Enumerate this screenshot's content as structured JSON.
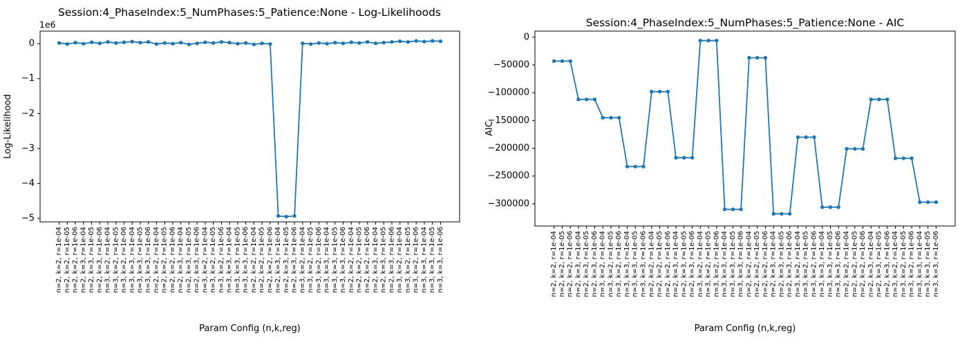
{
  "figure": {
    "background": "#ffffff",
    "accent_color": "#1f77b4"
  },
  "chart_data": [
    {
      "type": "line",
      "title": "Session:4_PhaseIndex:5_NumPhases:5_Patience:None - Log-Likelihoods",
      "ylabel": "Log-Likelihood",
      "xlabel": "Param Config (n,k,reg)",
      "offset_text": "1e6",
      "legend": "none",
      "grid": false,
      "line_color": "#1f77b4",
      "marker": "circle",
      "ylim": [
        -5100000,
        360000
      ],
      "yticks": [
        0,
        -1000000,
        -2000000,
        -3000000,
        -4000000,
        -5000000
      ],
      "ytick_labels": [
        "0",
        "−1",
        "−2",
        "−3",
        "−4",
        "−5"
      ],
      "categories": [
        "n=2, k=2, r=1e-04",
        "n=2, k=2, r=1e-05",
        "n=2, k=2, r=1e-06",
        "n=2, k=3, r=1e-04",
        "n=2, k=3, r=1e-05",
        "n=2, k=3, r=1e-06",
        "n=3, k=2, r=1e-04",
        "n=3, k=2, r=1e-05",
        "n=3, k=2, r=1e-06",
        "n=3, k=3, r=1e-04",
        "n=3, k=3, r=1e-05",
        "n=3, k=3, r=1e-06",
        "n=2, k=2, r=1e-04",
        "n=2, k=2, r=1e-05",
        "n=2, k=2, r=1e-06",
        "n=2, k=3, r=1e-04",
        "n=2, k=3, r=1e-05",
        "n=2, k=3, r=1e-06",
        "n=3, k=2, r=1e-04",
        "n=3, k=2, r=1e-05",
        "n=3, k=2, r=1e-06",
        "n=3, k=3, r=1e-04",
        "n=3, k=3, r=1e-05",
        "n=3, k=3, r=1e-06",
        "n=2, k=2, r=1e-04",
        "n=2, k=2, r=1e-05",
        "n=2, k=2, r=1e-06",
        "n=2, k=3, r=1e-04",
        "n=2, k=3, r=1e-05",
        "n=2, k=3, r=1e-06",
        "n=3, k=2, r=1e-04",
        "n=3, k=2, r=1e-05",
        "n=3, k=2, r=1e-06",
        "n=3, k=3, r=1e-04",
        "n=3, k=3, r=1e-05",
        "n=3, k=3, r=1e-06",
        "n=2, k=2, r=1e-04",
        "n=2, k=2, r=1e-05",
        "n=2, k=2, r=1e-06",
        "n=2, k=3, r=1e-04",
        "n=2, k=3, r=1e-05",
        "n=2, k=3, r=1e-06",
        "n=3, k=2, r=1e-04",
        "n=3, k=2, r=1e-05",
        "n=3, k=2, r=1e-06",
        "n=3, k=3, r=1e-04",
        "n=3, k=3, r=1e-05",
        "n=3, k=3, r=1e-06"
      ],
      "values": [
        20000,
        -10000,
        30000,
        0,
        40000,
        10000,
        50000,
        20000,
        40000,
        60000,
        30000,
        50000,
        -10000,
        20000,
        0,
        30000,
        -20000,
        10000,
        40000,
        20000,
        50000,
        30000,
        0,
        20000,
        -20000,
        10000,
        -10000,
        -4930000,
        -4950000,
        -4930000,
        10000,
        -10000,
        20000,
        0,
        30000,
        10000,
        40000,
        20000,
        50000,
        10000,
        30000,
        50000,
        70000,
        50000,
        80000,
        60000,
        80000,
        70000
      ]
    },
    {
      "type": "line",
      "title": "Session:4_PhaseIndex:5_NumPhases:5_Patience:None - AIC",
      "ylabel": "AIC",
      "xlabel": "Param Config (n,k,reg)",
      "offset_text": "",
      "legend": "none",
      "grid": false,
      "line_color": "#1f77b4",
      "marker": "circle",
      "ylim": [
        -340000,
        11000
      ],
      "yticks": [
        0,
        -50000,
        -100000,
        -150000,
        -200000,
        -250000,
        -300000
      ],
      "ytick_labels": [
        "0",
        "−50000",
        "−100000",
        "−150000",
        "−200000",
        "−250000",
        "−300000"
      ],
      "categories": [
        "n=2, k=2, r=1e-04",
        "n=2, k=2, r=1e-05",
        "n=2, k=2, r=1e-06",
        "n=2, k=3, r=1e-04",
        "n=2, k=3, r=1e-05",
        "n=2, k=3, r=1e-06",
        "n=3, k=2, r=1e-04",
        "n=3, k=2, r=1e-05",
        "n=3, k=2, r=1e-06",
        "n=3, k=3, r=1e-04",
        "n=3, k=3, r=1e-05",
        "n=3, k=3, r=1e-06",
        "n=2, k=2, r=1e-04",
        "n=2, k=2, r=1e-05",
        "n=2, k=2, r=1e-06",
        "n=2, k=3, r=1e-04",
        "n=2, k=3, r=1e-05",
        "n=2, k=3, r=1e-06",
        "n=3, k=2, r=1e-04",
        "n=3, k=2, r=1e-05",
        "n=3, k=2, r=1e-06",
        "n=3, k=3, r=1e-04",
        "n=3, k=3, r=1e-05",
        "n=3, k=3, r=1e-06",
        "n=2, k=2, r=1e-04",
        "n=2, k=2, r=1e-05",
        "n=2, k=2, r=1e-06",
        "n=2, k=3, r=1e-04",
        "n=2, k=3, r=1e-05",
        "n=2, k=3, r=1e-06",
        "n=3, k=2, r=1e-04",
        "n=3, k=2, r=1e-05",
        "n=3, k=2, r=1e-06",
        "n=3, k=3, r=1e-04",
        "n=3, k=3, r=1e-05",
        "n=3, k=3, r=1e-06",
        "n=2, k=2, r=1e-04",
        "n=2, k=2, r=1e-05",
        "n=2, k=2, r=1e-06",
        "n=2, k=3, r=1e-04",
        "n=2, k=3, r=1e-05",
        "n=2, k=3, r=1e-06",
        "n=3, k=2, r=1e-04",
        "n=3, k=2, r=1e-05",
        "n=3, k=2, r=1e-06",
        "n=3, k=3, r=1e-04",
        "n=3, k=3, r=1e-05",
        "n=3, k=3, r=1e-06"
      ],
      "values": [
        -43000,
        -43000,
        -43000,
        -112000,
        -112000,
        -112000,
        -145000,
        -145000,
        -145000,
        -233000,
        -233000,
        -233000,
        -98000,
        -98000,
        -98000,
        -217000,
        -217000,
        -217000,
        -6000,
        -6000,
        -6000,
        -310000,
        -310000,
        -310000,
        -37000,
        -37000,
        -37000,
        -318000,
        -318000,
        -318000,
        -180000,
        -180000,
        -180000,
        -306000,
        -306000,
        -306000,
        -201000,
        -201000,
        -201000,
        -112000,
        -112000,
        -112000,
        -218000,
        -218000,
        -218000,
        -297000,
        -297000,
        -297000
      ]
    }
  ]
}
